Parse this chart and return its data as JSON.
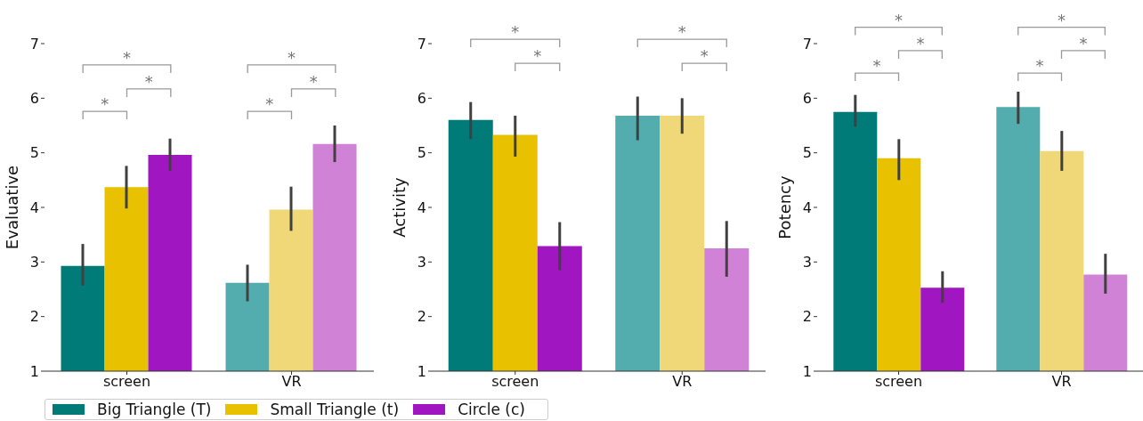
{
  "chart_data": [
    {
      "type": "bar",
      "ylabel": "Evaluative",
      "categories": [
        "screen",
        "VR"
      ],
      "ylim": [
        1,
        7
      ],
      "yticks": [
        1,
        2,
        3,
        4,
        5,
        6,
        7
      ],
      "grid": false,
      "legend": "bottom",
      "series": [
        {
          "name": "Big Triangle (T)",
          "colors": [
            "#007b78",
            "#53acad"
          ],
          "values": [
            2.93,
            2.62
          ],
          "errors": [
            [
              2.57,
              3.33
            ],
            [
              2.28,
              2.95
            ]
          ]
        },
        {
          "name": "Small Triangle (t)",
          "colors": [
            "#e8c200",
            "#f0d878"
          ],
          "values": [
            4.37,
            3.96
          ],
          "errors": [
            [
              3.98,
              4.76
            ],
            [
              3.57,
              4.38
            ]
          ]
        },
        {
          "name": "Circle (c)",
          "colors": [
            "#a016c0",
            "#cf82d6"
          ],
          "values": [
            4.96,
            5.16
          ],
          "errors": [
            [
              4.67,
              5.26
            ],
            [
              4.83,
              5.5
            ]
          ]
        }
      ],
      "annotations": [
        "*",
        "*",
        "*",
        "*",
        "*",
        "*"
      ]
    },
    {
      "type": "bar",
      "ylabel": "Activity",
      "categories": [
        "screen",
        "VR"
      ],
      "ylim": [
        1,
        7
      ],
      "yticks": [
        1,
        2,
        3,
        4,
        5,
        6,
        7
      ],
      "grid": false,
      "series": [
        {
          "colors": [
            "#007b78",
            "#53acad"
          ],
          "values": [
            5.6,
            5.68
          ],
          "errors": [
            [
              5.25,
              5.93
            ],
            [
              5.23,
              6.03
            ]
          ]
        },
        {
          "colors": [
            "#e8c200",
            "#f0d878"
          ],
          "values": [
            5.33,
            5.68
          ],
          "errors": [
            [
              4.93,
              5.68
            ],
            [
              5.35,
              6.0
            ]
          ]
        },
        {
          "colors": [
            "#a016c0",
            "#cf82d6"
          ],
          "values": [
            3.29,
            3.25
          ],
          "errors": [
            [
              2.85,
              3.73
            ],
            [
              2.73,
              3.75
            ]
          ]
        }
      ],
      "annotations": [
        "*",
        "*",
        "*",
        "*"
      ]
    },
    {
      "type": "bar",
      "ylabel": "Potency",
      "categories": [
        "screen",
        "VR"
      ],
      "ylim": [
        1,
        7
      ],
      "yticks": [
        1,
        2,
        3,
        4,
        5,
        6,
        7
      ],
      "grid": false,
      "series": [
        {
          "colors": [
            "#007b78",
            "#53acad"
          ],
          "values": [
            5.75,
            5.84
          ],
          "errors": [
            [
              5.48,
              6.06
            ],
            [
              5.53,
              6.12
            ]
          ]
        },
        {
          "colors": [
            "#e8c200",
            "#f0d878"
          ],
          "values": [
            4.9,
            5.03
          ],
          "errors": [
            [
              4.5,
              5.25
            ],
            [
              4.67,
              5.4
            ]
          ]
        },
        {
          "colors": [
            "#a016c0",
            "#cf82d6"
          ],
          "values": [
            2.53,
            2.77
          ],
          "errors": [
            [
              2.25,
              2.83
            ],
            [
              2.42,
              3.15
            ]
          ]
        }
      ],
      "annotations": [
        "*",
        "*",
        "*",
        "*",
        "*",
        "*"
      ]
    }
  ]
}
